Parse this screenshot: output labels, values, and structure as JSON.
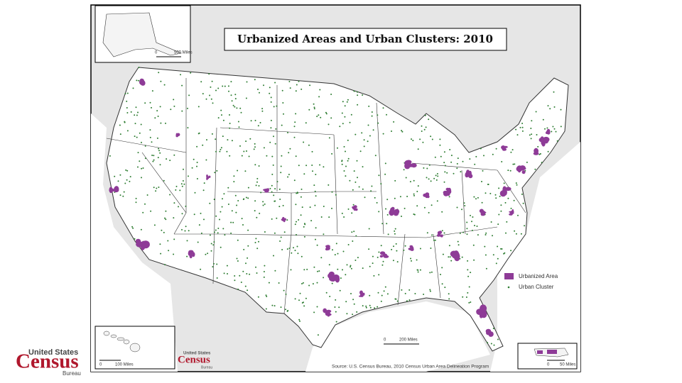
{
  "map": {
    "title": "Urbanized Areas and Urban Clusters: 2010",
    "legend": {
      "urbanized_area": "Urbanized Area",
      "urban_cluster": "Urban Cluster"
    },
    "scale_bars": {
      "alaska": {
        "start": "0",
        "end": "500 Miles"
      },
      "hawaii": {
        "start": "0",
        "end": "100 Miles"
      },
      "main": {
        "start": "0",
        "end": "200 Miles"
      },
      "puerto_rico": {
        "start": "0",
        "end": "50 Miles"
      }
    },
    "source": "Source: U.S. Census Bureau, 2010 Census Urban Area Delineation Program",
    "inset_logo": {
      "line1": "United States",
      "line2": "Census",
      "line3": "Bureau"
    }
  },
  "logo": {
    "line1": "United States",
    "line2": "Census",
    "line3": "Bureau"
  }
}
